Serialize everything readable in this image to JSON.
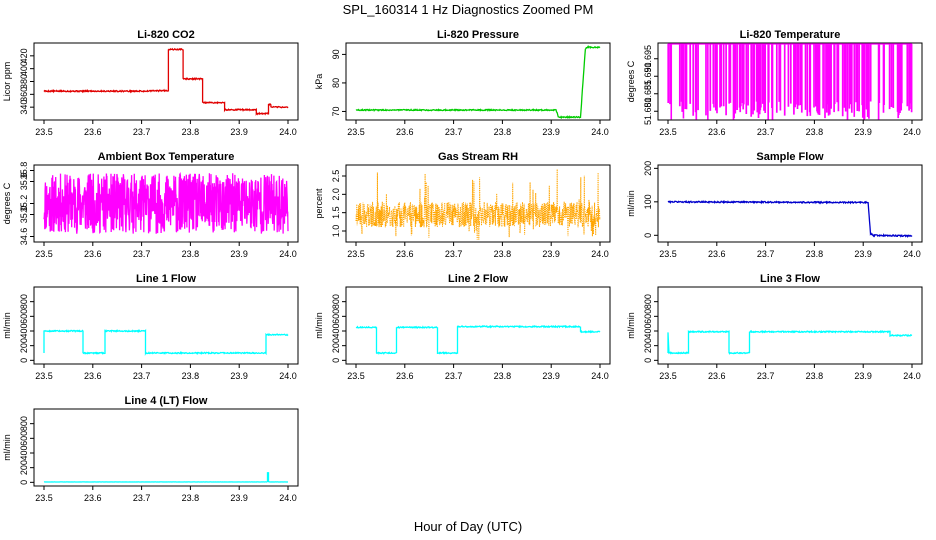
{
  "figure": {
    "title": "SPL_160314  1 Hz Diagnostics Zoomed PM",
    "xlabel": "Hour of Day (UTC)"
  },
  "chart_data": [
    {
      "type": "line",
      "title": "Li-820 CO2",
      "ylabel": "Licor ppm",
      "color": "#e00000",
      "xlim": [
        23.5,
        24.0
      ],
      "ylim": [
        320,
        440
      ],
      "xticks": [
        "23.5",
        "23.6",
        "23.7",
        "23.8",
        "23.9",
        "24.0"
      ],
      "yticks": [
        "340",
        "360",
        "380",
        "400",
        "420"
      ],
      "series": [
        {
          "noise": 1,
          "x": [
            23.5,
            23.705,
            23.755,
            23.755,
            23.785,
            23.785,
            23.825,
            23.825,
            23.87,
            23.87,
            23.935,
            23.935,
            23.96,
            23.96,
            23.965,
            23.965,
            24.0
          ],
          "y": [
            365,
            365,
            366,
            430,
            430,
            384,
            384,
            347,
            347,
            336,
            336,
            330,
            330,
            344,
            344,
            340,
            340
          ]
        }
      ]
    },
    {
      "type": "line",
      "title": "Li-820 Pressure",
      "ylabel": "kPa",
      "color": "#00cc00",
      "xlim": [
        23.5,
        24.0
      ],
      "ylim": [
        67,
        94
      ],
      "xticks": [
        "23.5",
        "23.6",
        "23.7",
        "23.8",
        "23.9",
        "24.0"
      ],
      "yticks": [
        "70",
        "80",
        "90"
      ],
      "series": [
        {
          "noise": 0.2,
          "x": [
            23.5,
            23.91,
            23.915,
            23.96,
            23.97,
            23.975,
            24.0
          ],
          "y": [
            70.5,
            70.5,
            68.0,
            68.0,
            92.0,
            92.5,
            92.5
          ]
        }
      ]
    },
    {
      "type": "line",
      "title": "Li-820 Temperature",
      "ylabel": "degrees C",
      "color": "#ff00ff",
      "xlim": [
        23.5,
        24.0
      ],
      "ylim": [
        51.6775,
        51.6995
      ],
      "xticks": [
        "23.5",
        "23.6",
        "23.7",
        "23.8",
        "23.9",
        "24.0"
      ],
      "yticks": [
        "51.680",
        "51.685",
        "51.690",
        "51.695"
      ],
      "series": [
        {
          "base": 51.6995,
          "low": 51.6775,
          "drops": 130,
          "seed": 7
        }
      ]
    },
    {
      "type": "line",
      "title": "Ambient Box Temperature",
      "ylabel": "degrees C",
      "color": "#ff00ff",
      "xlim": [
        23.5,
        24.0
      ],
      "ylim": [
        34.5,
        35.9
      ],
      "xticks": [
        "23.5",
        "23.6",
        "23.7",
        "23.8",
        "23.9",
        "24.0"
      ],
      "yticks": [
        "34.6",
        "35.0",
        "35.2",
        "35.6",
        "35.8"
      ],
      "series": [
        {
          "mean": 35.2,
          "amp": 0.55,
          "points": 900,
          "seed": 11
        }
      ]
    },
    {
      "type": "line",
      "title": "Gas Stream RH",
      "ylabel": "percent",
      "color": "#ffa500",
      "xlim": [
        23.5,
        24.0
      ],
      "ylim": [
        0.7,
        2.8
      ],
      "xticks": [
        "23.5",
        "23.6",
        "23.7",
        "23.8",
        "23.9",
        "24.0"
      ],
      "yticks": [
        "1.0",
        "1.5",
        "2.0",
        "2.5"
      ],
      "series": [
        {
          "mean": 1.45,
          "amp": 0.35,
          "spike_max": 2.7,
          "points": 900,
          "seed": 23
        }
      ]
    },
    {
      "type": "line",
      "title": "Sample Flow",
      "ylabel": "ml/min",
      "color": "#0000cc",
      "xlim": [
        23.5,
        24.0
      ],
      "ylim": [
        -20,
        210
      ],
      "xticks": [
        "23.5",
        "23.6",
        "23.7",
        "23.8",
        "23.9",
        "24.0"
      ],
      "yticks": [
        "0",
        "100",
        "200"
      ],
      "series": [
        {
          "noise": 2,
          "x": [
            23.5,
            23.91,
            23.915,
            23.92,
            24.0
          ],
          "y": [
            100,
            98,
            5,
            0,
            -2
          ]
        }
      ]
    },
    {
      "type": "line",
      "title": "Line 1 Flow",
      "ylabel": "ml/min",
      "color": "#00ffff",
      "xlim": [
        23.5,
        24.0
      ],
      "ylim": [
        -50,
        1000
      ],
      "xticks": [
        "23.5",
        "23.6",
        "23.7",
        "23.8",
        "23.9",
        "24.0"
      ],
      "yticks": [
        "0",
        "200",
        "400",
        "600",
        "800"
      ],
      "series": [
        {
          "noise": 8,
          "x": [
            23.5,
            23.5,
            23.58,
            23.58,
            23.625,
            23.625,
            23.708,
            23.708,
            23.955,
            23.955,
            24.0
          ],
          "y": [
            100,
            400,
            400,
            100,
            100,
            400,
            400,
            100,
            100,
            350,
            350
          ]
        }
      ]
    },
    {
      "type": "line",
      "title": "Line 2 Flow",
      "ylabel": "ml/min",
      "color": "#00ffff",
      "xlim": [
        23.5,
        24.0
      ],
      "ylim": [
        -50,
        1000
      ],
      "xticks": [
        "23.5",
        "23.6",
        "23.7",
        "23.8",
        "23.9",
        "24.0"
      ],
      "yticks": [
        "0",
        "200",
        "400",
        "600",
        "800"
      ],
      "series": [
        {
          "noise": 8,
          "x": [
            23.5,
            23.542,
            23.542,
            23.583,
            23.583,
            23.667,
            23.667,
            23.708,
            23.708,
            23.96,
            23.96,
            24.0
          ],
          "y": [
            450,
            450,
            100,
            100,
            450,
            450,
            100,
            100,
            460,
            460,
            390,
            390
          ]
        }
      ]
    },
    {
      "type": "line",
      "title": "Line 3 Flow",
      "ylabel": "ml/min",
      "color": "#00ffff",
      "xlim": [
        23.5,
        24.0
      ],
      "ylim": [
        -50,
        1000
      ],
      "xticks": [
        "23.5",
        "23.6",
        "23.7",
        "23.8",
        "23.9",
        "24.0"
      ],
      "yticks": [
        "0",
        "200",
        "400",
        "600",
        "800"
      ],
      "series": [
        {
          "noise": 8,
          "x": [
            23.5,
            23.5,
            23.502,
            23.542,
            23.542,
            23.625,
            23.625,
            23.667,
            23.667,
            23.955,
            23.955,
            24.0
          ],
          "y": [
            100,
            380,
            100,
            100,
            390,
            390,
            100,
            100,
            390,
            390,
            340,
            340
          ]
        }
      ]
    },
    {
      "type": "line",
      "title": "Line 4 (LT) Flow",
      "ylabel": "ml/min",
      "color": "#00ffff",
      "xlim": [
        23.5,
        24.0
      ],
      "ylim": [
        -50,
        1000
      ],
      "xticks": [
        "23.5",
        "23.6",
        "23.7",
        "23.8",
        "23.9",
        "24.0"
      ],
      "yticks": [
        "0",
        "200",
        "400",
        "600",
        "800"
      ],
      "series": [
        {
          "noise": 1,
          "x": [
            23.5,
            23.958,
            23.958,
            23.96,
            23.96,
            24.0
          ],
          "y": [
            5,
            5,
            130,
            130,
            5,
            5
          ]
        }
      ]
    }
  ]
}
